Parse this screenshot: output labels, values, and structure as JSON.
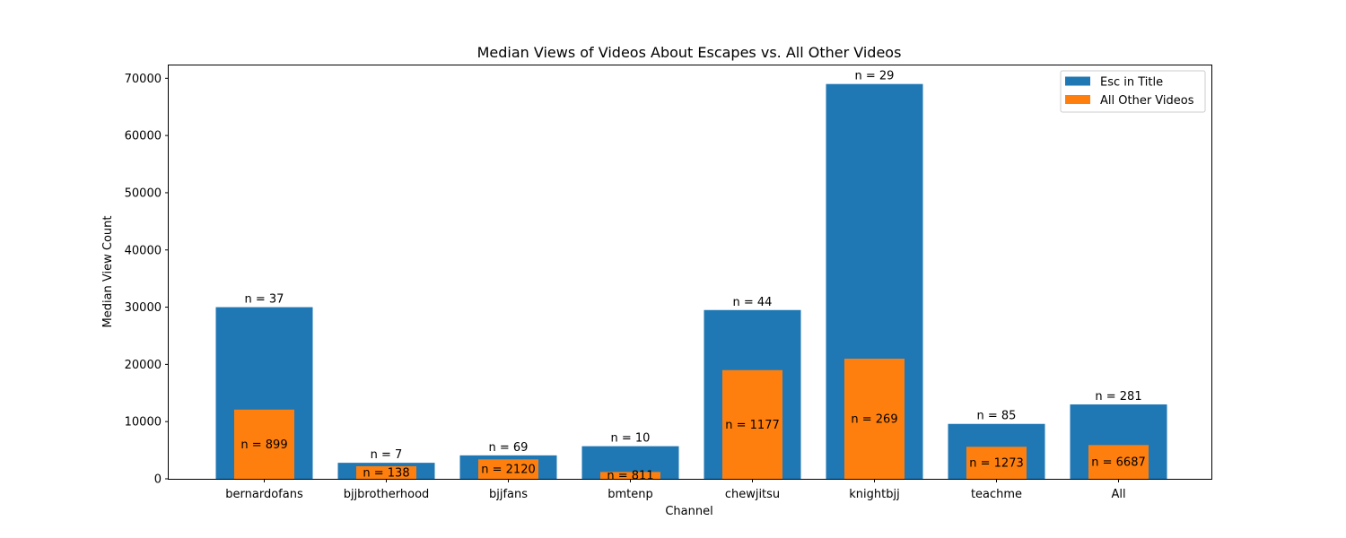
{
  "chart_data": {
    "type": "bar",
    "title": "Median Views of Videos About Escapes vs. All Other Videos",
    "xlabel": "Channel",
    "ylabel": "Median View Count",
    "ylim": [
      0,
      72400
    ],
    "yticks": [
      0,
      10000,
      20000,
      30000,
      40000,
      50000,
      60000,
      70000
    ],
    "ytick_labels": [
      "0",
      "10000",
      "20000",
      "30000",
      "40000",
      "50000",
      "60000",
      "70000"
    ],
    "categories": [
      "bernardofans",
      "bjjbrotherhood",
      "bjjfans",
      "bmtenp",
      "chewjitsu",
      "knightbjj",
      "teachme",
      "All"
    ],
    "series": [
      {
        "name": "Esc in Title",
        "color": "#1f77b4",
        "values": [
          30000,
          2800,
          4100,
          5700,
          29500,
          69000,
          9600,
          13000
        ],
        "labels": [
          "n = 37",
          "n = 7",
          "n = 69",
          "n = 10",
          "n = 44",
          "n = 29",
          "n = 85",
          "n = 281"
        ]
      },
      {
        "name": "All Other Videos",
        "color": "#ff7f0e",
        "values": [
          12100,
          2200,
          3400,
          1200,
          19000,
          21000,
          5600,
          5900
        ],
        "labels": [
          "n = 899",
          "n = 138",
          "n = 2120",
          "n = 811",
          "n = 1177",
          "n = 269",
          "n = 1273",
          "n = 6687"
        ]
      }
    ],
    "legend": {
      "position": "top-right"
    },
    "grid": false
  }
}
